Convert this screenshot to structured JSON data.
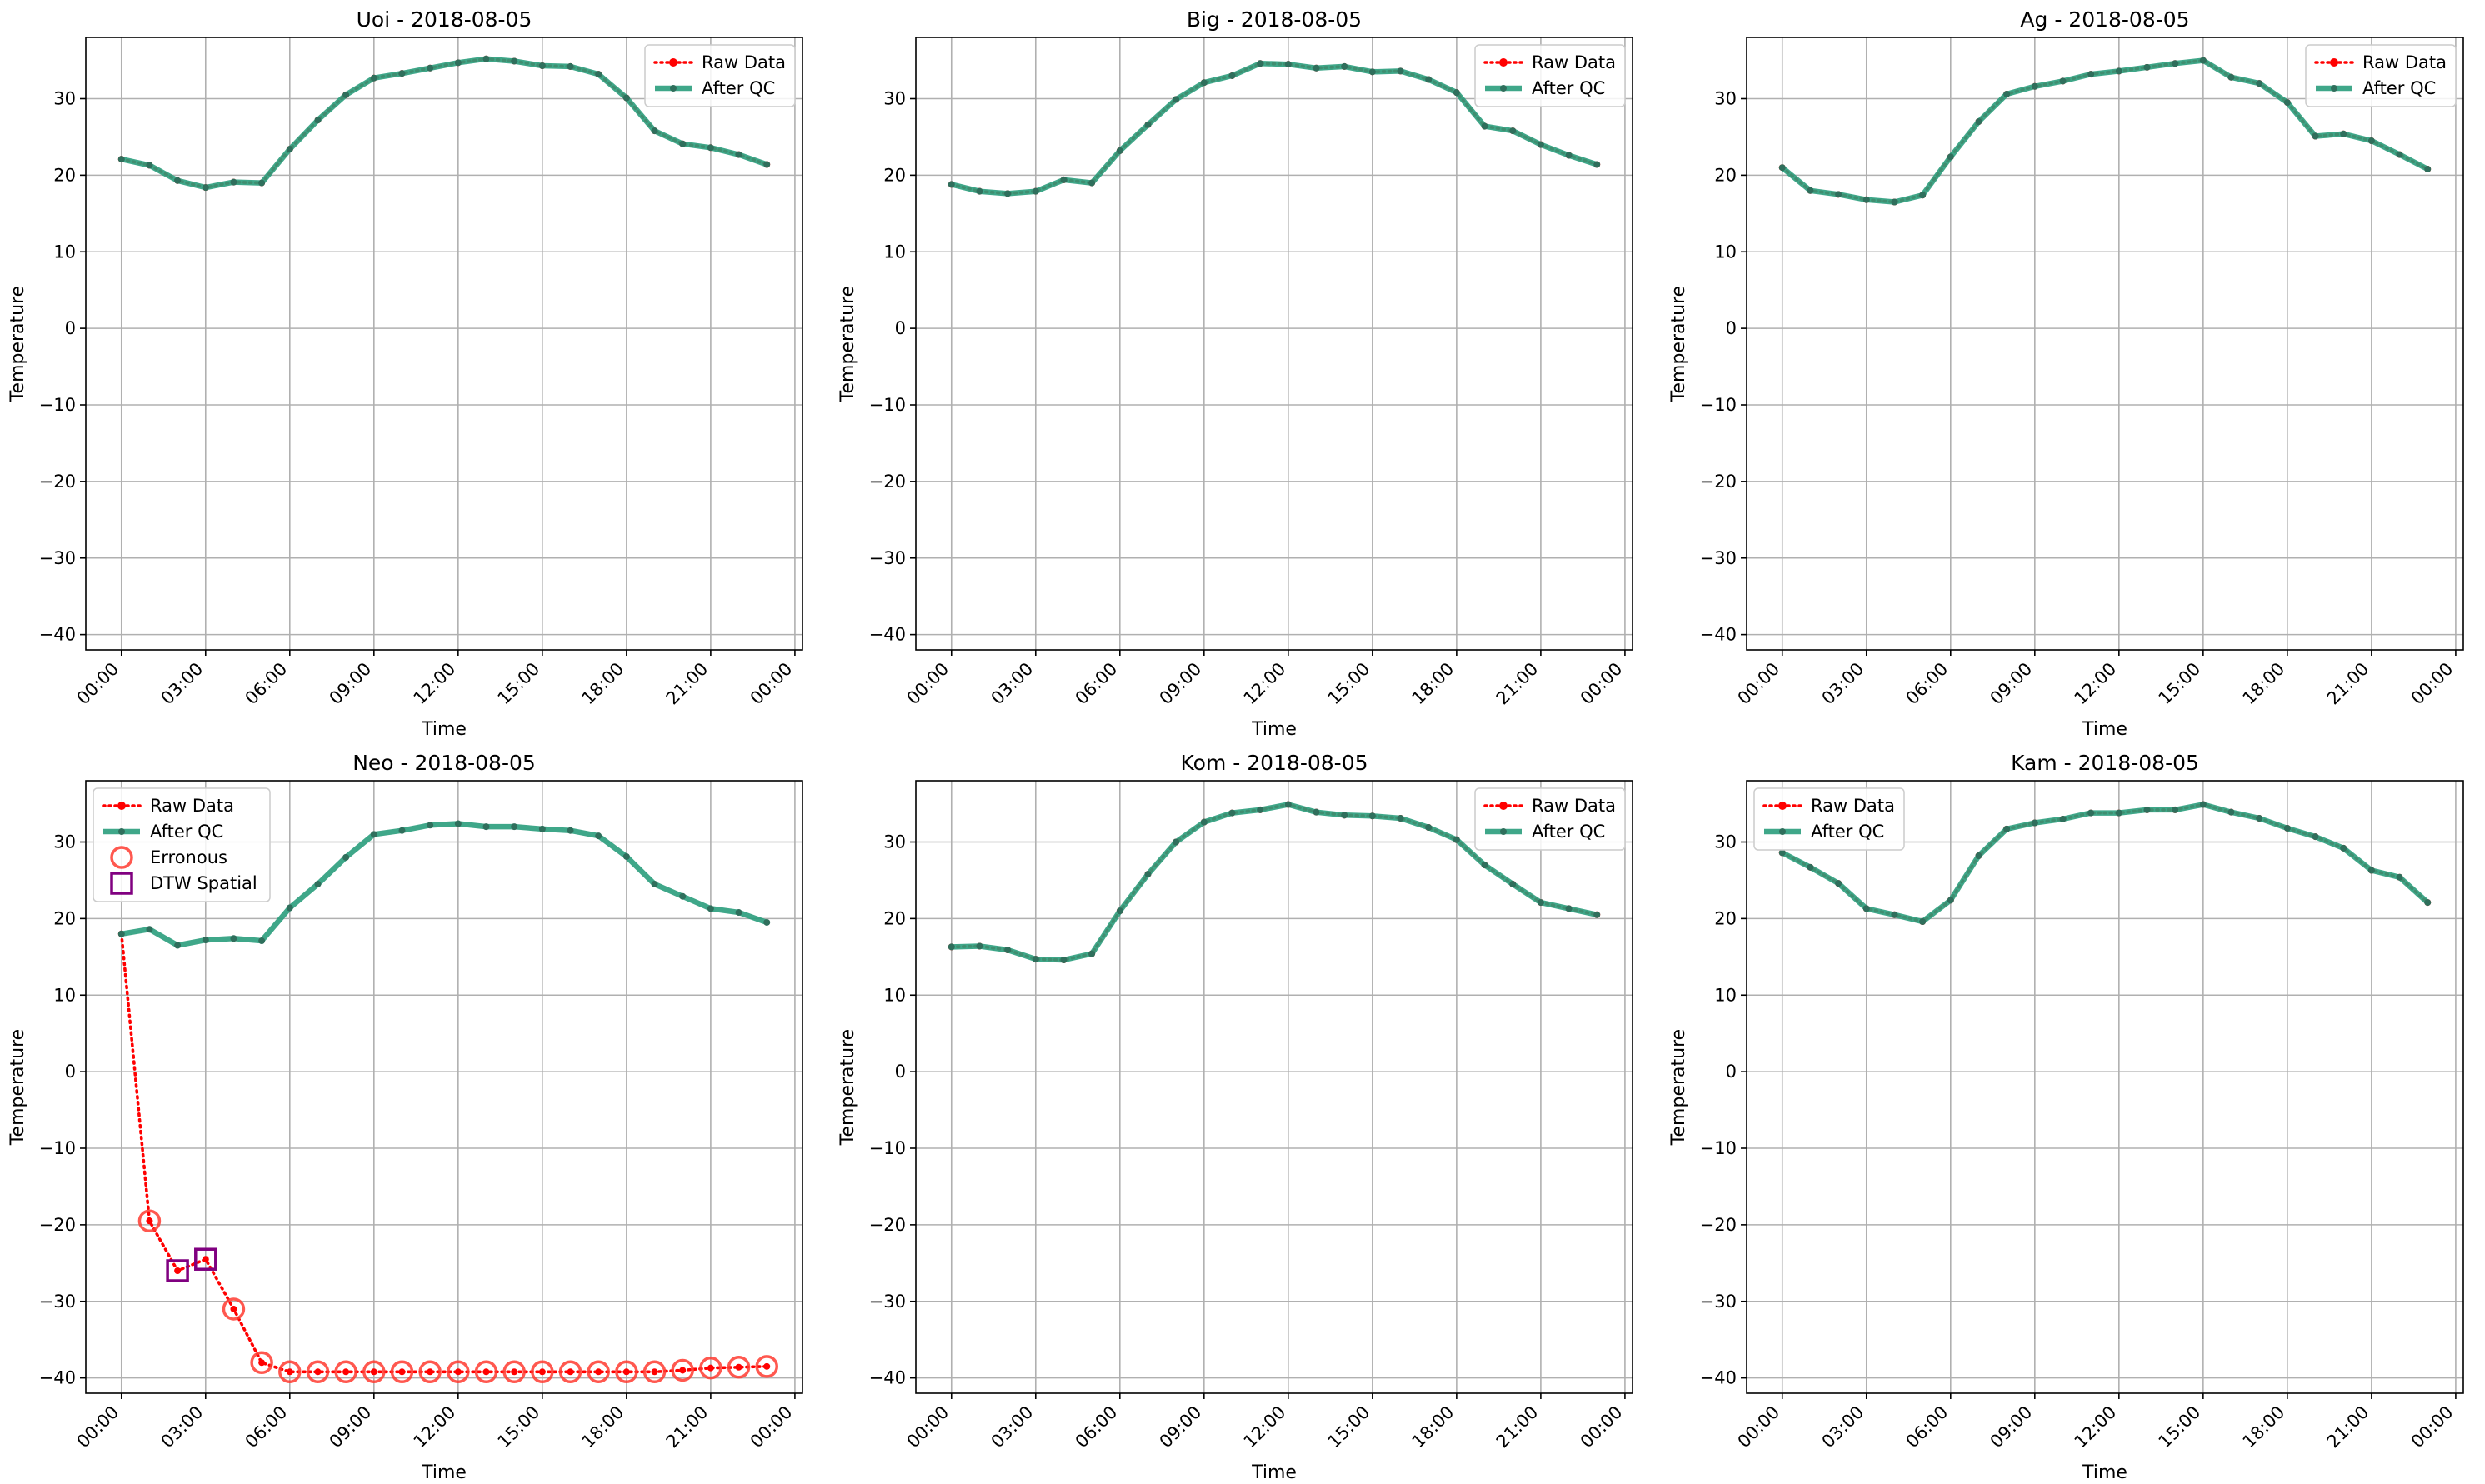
{
  "colors": {
    "raw": "#ff0000",
    "qc": "#2a9d7c",
    "qc_marker": "#2f6f5c",
    "erroneous": "#ff3b30",
    "dtw": "#800080",
    "grid": "#b0b0b0"
  },
  "chart_data": [
    {
      "type": "line",
      "title": "Uoi - 2018-08-05",
      "xlabel": "Time",
      "ylabel": "Temperature",
      "x_ticks": [
        "00:00",
        "03:00",
        "06:00",
        "09:00",
        "12:00",
        "15:00",
        "18:00",
        "21:00",
        "00:00"
      ],
      "y_ticks": [
        -40,
        -30,
        -20,
        -10,
        0,
        10,
        20,
        30
      ],
      "ylim": [
        -42,
        38
      ],
      "grid": true,
      "legend_position": "top-right",
      "legend": [
        "Raw Data",
        "After QC"
      ],
      "hours": [
        0,
        1,
        2,
        3,
        4,
        5,
        6,
        7,
        8,
        9,
        10,
        11,
        12,
        13,
        14,
        15,
        16,
        17,
        18,
        19,
        20,
        21,
        22,
        23
      ],
      "series": [
        {
          "name": "Raw Data",
          "values": [
            22.1,
            21.3,
            19.3,
            18.4,
            19.1,
            19.0,
            23.4,
            27.2,
            30.5,
            32.7,
            33.3,
            34.0,
            34.7,
            35.2,
            34.9,
            34.3,
            34.2,
            33.2,
            30.1,
            25.8,
            24.1,
            23.6,
            22.7,
            21.4
          ]
        },
        {
          "name": "After QC",
          "values": [
            22.1,
            21.3,
            19.3,
            18.4,
            19.1,
            19.0,
            23.4,
            27.2,
            30.5,
            32.7,
            33.3,
            34.0,
            34.7,
            35.2,
            34.9,
            34.3,
            34.2,
            33.2,
            30.1,
            25.8,
            24.1,
            23.6,
            22.7,
            21.4
          ]
        }
      ]
    },
    {
      "type": "line",
      "title": "Big - 2018-08-05",
      "xlabel": "Time",
      "ylabel": "Temperature",
      "x_ticks": [
        "00:00",
        "03:00",
        "06:00",
        "09:00",
        "12:00",
        "15:00",
        "18:00",
        "21:00",
        "00:00"
      ],
      "y_ticks": [
        -40,
        -30,
        -20,
        -10,
        0,
        10,
        20,
        30
      ],
      "ylim": [
        -42,
        38
      ],
      "grid": true,
      "legend_position": "top-right",
      "legend": [
        "Raw Data",
        "After QC"
      ],
      "hours": [
        0,
        1,
        2,
        3,
        4,
        5,
        6,
        7,
        8,
        9,
        10,
        11,
        12,
        13,
        14,
        15,
        16,
        17,
        18,
        19,
        20,
        21,
        22,
        23
      ],
      "series": [
        {
          "name": "Raw Data",
          "values": [
            18.8,
            17.9,
            17.6,
            17.9,
            19.4,
            19.0,
            23.2,
            26.6,
            29.9,
            32.1,
            33.0,
            34.6,
            34.5,
            34.0,
            34.2,
            33.5,
            33.6,
            32.5,
            30.8,
            26.4,
            25.8,
            24.0,
            22.6,
            21.4
          ]
        },
        {
          "name": "After QC",
          "values": [
            18.8,
            17.9,
            17.6,
            17.9,
            19.4,
            19.0,
            23.2,
            26.6,
            29.9,
            32.1,
            33.0,
            34.6,
            34.5,
            34.0,
            34.2,
            33.5,
            33.6,
            32.5,
            30.8,
            26.4,
            25.8,
            24.0,
            22.6,
            21.4
          ]
        }
      ]
    },
    {
      "type": "line",
      "title": "Ag - 2018-08-05",
      "xlabel": "Time",
      "ylabel": "Temperature",
      "x_ticks": [
        "00:00",
        "03:00",
        "06:00",
        "09:00",
        "12:00",
        "15:00",
        "18:00",
        "21:00",
        "00:00"
      ],
      "y_ticks": [
        -40,
        -30,
        -20,
        -10,
        0,
        10,
        20,
        30
      ],
      "ylim": [
        -42,
        38
      ],
      "grid": true,
      "legend_position": "top-right",
      "legend": [
        "Raw Data",
        "After QC"
      ],
      "hours": [
        0,
        1,
        2,
        3,
        4,
        5,
        6,
        7,
        8,
        9,
        10,
        11,
        12,
        13,
        14,
        15,
        16,
        17,
        18,
        19,
        20,
        21,
        22,
        23
      ],
      "series": [
        {
          "name": "Raw Data",
          "values": [
            21.0,
            18.0,
            17.5,
            16.8,
            16.5,
            17.4,
            22.4,
            27.0,
            30.6,
            31.6,
            32.3,
            33.2,
            33.6,
            34.1,
            34.6,
            35.0,
            32.8,
            32.0,
            29.5,
            25.1,
            25.4,
            24.5,
            22.7,
            20.8
          ]
        },
        {
          "name": "After QC",
          "values": [
            21.0,
            18.0,
            17.5,
            16.8,
            16.5,
            17.4,
            22.4,
            27.0,
            30.6,
            31.6,
            32.3,
            33.2,
            33.6,
            34.1,
            34.6,
            35.0,
            32.8,
            32.0,
            29.5,
            25.1,
            25.4,
            24.5,
            22.7,
            20.8
          ]
        }
      ]
    },
    {
      "type": "line",
      "title": "Neo - 2018-08-05",
      "xlabel": "Time",
      "ylabel": "Temperature",
      "x_ticks": [
        "00:00",
        "03:00",
        "06:00",
        "09:00",
        "12:00",
        "15:00",
        "18:00",
        "21:00",
        "00:00"
      ],
      "y_ticks": [
        -40,
        -30,
        -20,
        -10,
        0,
        10,
        20,
        30
      ],
      "ylim": [
        -42,
        38
      ],
      "grid": true,
      "legend_position": "top-left",
      "legend": [
        "Raw Data",
        "After QC",
        "Erronous",
        "DTW Spatial"
      ],
      "hours": [
        0,
        1,
        2,
        3,
        4,
        5,
        6,
        7,
        8,
        9,
        10,
        11,
        12,
        13,
        14,
        15,
        16,
        17,
        18,
        19,
        20,
        21,
        22,
        23
      ],
      "series": [
        {
          "name": "Raw Data",
          "values": [
            18.0,
            -19.5,
            -26.0,
            -24.5,
            -31.0,
            -38.0,
            -39.2,
            -39.2,
            -39.2,
            -39.2,
            -39.2,
            -39.2,
            -39.2,
            -39.2,
            -39.2,
            -39.2,
            -39.2,
            -39.2,
            -39.2,
            -39.2,
            -39.0,
            -38.7,
            -38.6,
            -38.5
          ]
        },
        {
          "name": "After QC",
          "values": [
            18.0,
            18.6,
            16.5,
            17.2,
            17.4,
            17.1,
            21.4,
            24.5,
            28.0,
            31.0,
            31.5,
            32.2,
            32.4,
            32.0,
            32.0,
            31.7,
            31.5,
            30.8,
            28.1,
            24.5,
            22.9,
            21.3,
            20.8,
            19.5
          ]
        }
      ],
      "erronous_hours": [
        1,
        4,
        5,
        6,
        7,
        8,
        9,
        10,
        11,
        12,
        13,
        14,
        15,
        16,
        17,
        18,
        19,
        20,
        21,
        22,
        23
      ],
      "dtw_spatial_hours": [
        2,
        3
      ]
    },
    {
      "type": "line",
      "title": "Kom - 2018-08-05",
      "xlabel": "Time",
      "ylabel": "Temperature",
      "x_ticks": [
        "00:00",
        "03:00",
        "06:00",
        "09:00",
        "12:00",
        "15:00",
        "18:00",
        "21:00",
        "00:00"
      ],
      "y_ticks": [
        -40,
        -30,
        -20,
        -10,
        0,
        10,
        20,
        30
      ],
      "ylim": [
        -42,
        38
      ],
      "grid": true,
      "legend_position": "top-right",
      "legend": [
        "Raw Data",
        "After QC"
      ],
      "hours": [
        0,
        1,
        2,
        3,
        4,
        5,
        6,
        7,
        8,
        9,
        10,
        11,
        12,
        13,
        14,
        15,
        16,
        17,
        18,
        19,
        20,
        21,
        22,
        23
      ],
      "series": [
        {
          "name": "Raw Data",
          "values": [
            16.3,
            16.4,
            15.9,
            14.7,
            14.6,
            15.4,
            21.0,
            25.8,
            30.0,
            32.6,
            33.8,
            34.2,
            34.9,
            33.9,
            33.5,
            33.4,
            33.1,
            31.9,
            30.3,
            27.0,
            24.5,
            22.1,
            21.3,
            20.5
          ]
        },
        {
          "name": "After QC",
          "values": [
            16.3,
            16.4,
            15.9,
            14.7,
            14.6,
            15.4,
            21.0,
            25.8,
            30.0,
            32.6,
            33.8,
            34.2,
            34.9,
            33.9,
            33.5,
            33.4,
            33.1,
            31.9,
            30.3,
            27.0,
            24.5,
            22.1,
            21.3,
            20.5
          ]
        }
      ]
    },
    {
      "type": "line",
      "title": "Kam - 2018-08-05",
      "xlabel": "Time",
      "ylabel": "Temperature",
      "x_ticks": [
        "00:00",
        "03:00",
        "06:00",
        "09:00",
        "12:00",
        "15:00",
        "18:00",
        "21:00",
        "00:00"
      ],
      "y_ticks": [
        -40,
        -30,
        -20,
        -10,
        0,
        10,
        20,
        30
      ],
      "ylim": [
        -42,
        38
      ],
      "grid": true,
      "legend_position": "top-left",
      "legend": [
        "Raw Data",
        "After QC"
      ],
      "hours": [
        0,
        1,
        2,
        3,
        4,
        5,
        6,
        7,
        8,
        9,
        10,
        11,
        12,
        13,
        14,
        15,
        16,
        17,
        18,
        19,
        20,
        21,
        22,
        23
      ],
      "series": [
        {
          "name": "Raw Data",
          "values": [
            28.6,
            26.7,
            24.6,
            21.3,
            20.5,
            19.6,
            22.4,
            28.2,
            31.7,
            32.5,
            33.0,
            33.8,
            33.8,
            34.2,
            34.2,
            34.9,
            33.9,
            33.1,
            31.8,
            30.7,
            29.2,
            26.3,
            25.4,
            22.1
          ]
        },
        {
          "name": "After QC",
          "values": [
            28.6,
            26.7,
            24.6,
            21.3,
            20.5,
            19.6,
            22.4,
            28.2,
            31.7,
            32.5,
            33.0,
            33.8,
            33.8,
            34.2,
            34.2,
            34.9,
            33.9,
            33.1,
            31.8,
            30.7,
            29.2,
            26.3,
            25.4,
            22.1
          ]
        }
      ]
    }
  ]
}
